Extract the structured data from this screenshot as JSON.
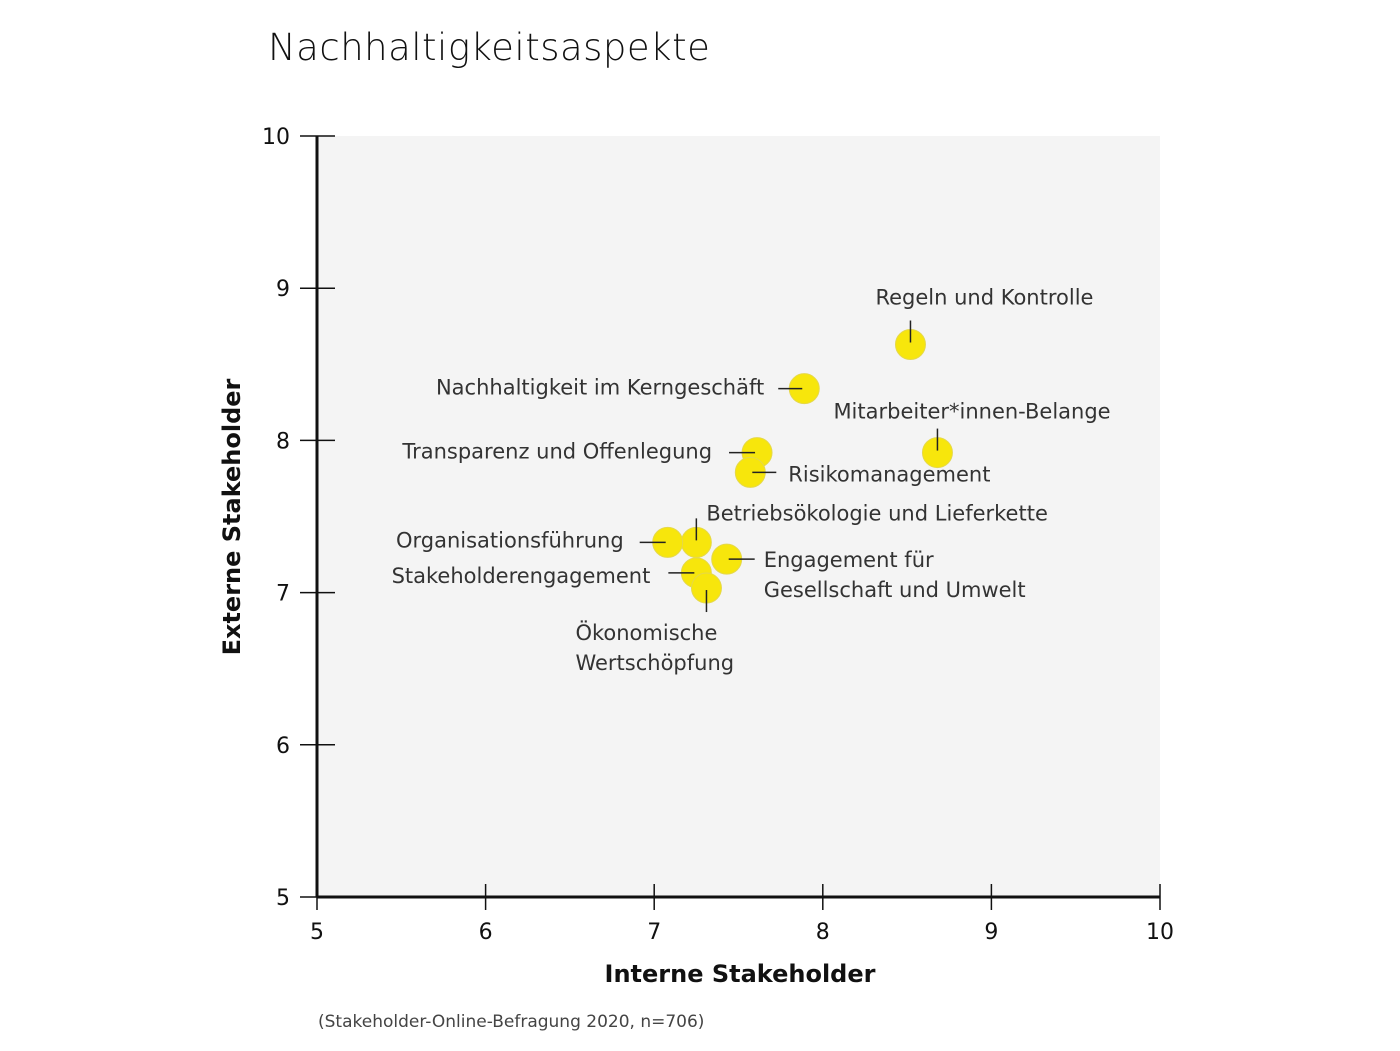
{
  "chart_data": {
    "type": "scatter",
    "title": "Nachhaltigkeitsaspekte",
    "xlabel": "Interne Stakeholder",
    "ylabel": "Externe Stakeholder",
    "xlim": [
      5,
      10
    ],
    "ylim": [
      5,
      10
    ],
    "xticks": [
      "5",
      "6",
      "7",
      "8",
      "9",
      "10"
    ],
    "yticks": [
      "5",
      "6",
      "7",
      "8",
      "9",
      "10"
    ],
    "grid": false,
    "point_color": "#f7e60c",
    "plot_background": "#f4f4f4",
    "points": [
      {
        "label": "Regeln und Kontrolle",
        "x": 8.52,
        "y": 8.63
      },
      {
        "label": "Nachhaltigkeit im Kerngeschäft",
        "x": 7.89,
        "y": 8.34
      },
      {
        "label": "Mitarbeiter*innen-Belange",
        "x": 8.68,
        "y": 7.92
      },
      {
        "label": "Transparenz und Offenlegung",
        "x": 7.61,
        "y": 7.92
      },
      {
        "label": "Risikomanagement",
        "x": 7.57,
        "y": 7.79
      },
      {
        "label": "Betriebsökologie und Lieferkette",
        "x": 7.25,
        "y": 7.33
      },
      {
        "label": "Organisationsführung",
        "x": 7.08,
        "y": 7.33
      },
      {
        "label": "Engagement für Gesellschaft und Umwelt",
        "x": 7.43,
        "y": 7.22
      },
      {
        "label": "Stakeholderengagement",
        "x": 7.25,
        "y": 7.13
      },
      {
        "label": "Ökonomische Wertschöpfung",
        "x": 7.31,
        "y": 7.03
      }
    ],
    "source_note": "(Stakeholder-Online-Befragung 2020, n=706)"
  }
}
